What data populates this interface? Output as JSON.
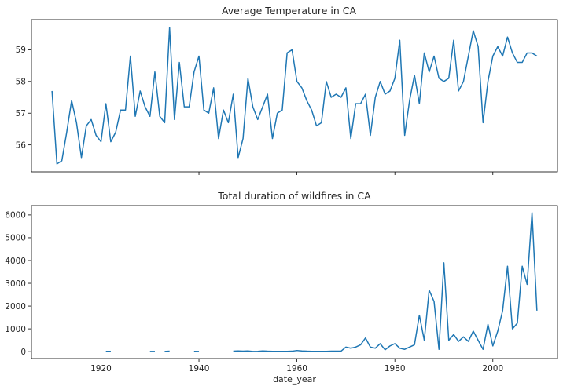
{
  "chart_data": [
    {
      "type": "line",
      "title": "Average Temperature in CA",
      "xlabel": "",
      "ylabel": "",
      "xlim": [
        1905.8,
        2013.2
      ],
      "ylim": [
        55.15,
        59.95
      ],
      "xticks": [
        1920,
        1940,
        1960,
        1980,
        2000
      ],
      "yticks": [
        56,
        57,
        58,
        59
      ],
      "show_xtick_labels": false,
      "color": "#1f77b4",
      "series": [
        {
          "x": [
            1910,
            1911,
            1912,
            1913,
            1914,
            1915,
            1916,
            1917,
            1918,
            1919,
            1920,
            1921,
            1922,
            1923,
            1924,
            1925,
            1926,
            1927,
            1928,
            1929,
            1930,
            1931,
            1932,
            1933,
            1934,
            1935,
            1936,
            1937,
            1938,
            1939,
            1940,
            1941,
            1942,
            1943,
            1944,
            1945,
            1946,
            1947,
            1948,
            1949,
            1950,
            1951,
            1952,
            1953,
            1954,
            1955,
            1956,
            1957,
            1958,
            1959,
            1960,
            1961,
            1962,
            1963,
            1964,
            1965,
            1966,
            1967,
            1968,
            1969,
            1970,
            1971,
            1972,
            1973,
            1974,
            1975,
            1976,
            1977,
            1978,
            1979,
            1980,
            1981,
            1982,
            1983,
            1984,
            1985,
            1986,
            1987,
            1988,
            1989,
            1990,
            1991,
            1992,
            1993,
            1994,
            1995,
            1996,
            1997,
            1998,
            1999,
            2000,
            2001,
            2002,
            2003,
            2004,
            2005,
            2006,
            2007,
            2008,
            2009
          ],
          "y": [
            57.7,
            55.4,
            55.5,
            56.4,
            57.4,
            56.7,
            55.6,
            56.6,
            56.8,
            56.3,
            56.1,
            57.3,
            56.1,
            56.4,
            57.1,
            57.1,
            58.8,
            56.9,
            57.7,
            57.2,
            56.9,
            58.3,
            56.9,
            56.7,
            59.7,
            56.8,
            58.6,
            57.2,
            57.2,
            58.3,
            58.8,
            57.1,
            57.0,
            57.8,
            56.2,
            57.1,
            56.7,
            57.6,
            55.6,
            56.2,
            58.1,
            57.2,
            56.8,
            57.2,
            57.6,
            56.2,
            57.0,
            57.1,
            58.9,
            59.0,
            58.0,
            57.8,
            57.4,
            57.1,
            56.6,
            56.7,
            58.0,
            57.5,
            57.6,
            57.5,
            57.8,
            56.2,
            57.3,
            57.3,
            57.6,
            56.3,
            57.5,
            58.0,
            57.6,
            57.7,
            58.1,
            59.3,
            56.3,
            57.4,
            58.2,
            57.3,
            58.9,
            58.3,
            58.8,
            58.1,
            58.0,
            58.1,
            59.3,
            57.7,
            58.0,
            58.8,
            59.6,
            59.1,
            56.7,
            58.0,
            58.8,
            59.1,
            58.8,
            59.4,
            58.9,
            58.6,
            58.6,
            58.9,
            58.9,
            58.8
          ]
        }
      ]
    },
    {
      "type": "line",
      "title": "Total duration of wildfires in CA",
      "xlabel": "date_year",
      "ylabel": "",
      "xlim": [
        1905.8,
        2013.2
      ],
      "ylim": [
        -305,
        6410
      ],
      "xticks": [
        1920,
        1940,
        1960,
        1980,
        2000
      ],
      "yticks": [
        0,
        1000,
        2000,
        3000,
        4000,
        5000,
        6000
      ],
      "color": "#1f77b4",
      "series": [
        {
          "x": [
            1910,
            1911,
            1912,
            1913,
            1914,
            1915,
            1916,
            1917,
            1918,
            1919,
            1920,
            1921,
            1922,
            1923,
            1924,
            1925,
            1926,
            1927,
            1928,
            1929,
            1930,
            1931,
            1932,
            1933,
            1934,
            1935,
            1936,
            1937,
            1938,
            1939,
            1940,
            1941,
            1942,
            1943,
            1944,
            1945,
            1946,
            1947,
            1948,
            1949,
            1950,
            1951,
            1952,
            1953,
            1954,
            1955,
            1956,
            1957,
            1958,
            1959,
            1960,
            1961,
            1962,
            1963,
            1964,
            1965,
            1966,
            1967,
            1968,
            1969,
            1970,
            1971,
            1972,
            1973,
            1974,
            1975,
            1976,
            1977,
            1978,
            1979,
            1980,
            1981,
            1982,
            1983,
            1984,
            1985,
            1986,
            1987,
            1988,
            1989,
            1990,
            1991,
            1992,
            1993,
            1994,
            1995,
            1996,
            1997,
            1998,
            1999,
            2000,
            2001,
            2002,
            2003,
            2004,
            2005,
            2006,
            2007,
            2008,
            2009
          ],
          "y": [
            null,
            null,
            null,
            null,
            null,
            null,
            null,
            null,
            null,
            null,
            null,
            15,
            15,
            null,
            null,
            null,
            null,
            null,
            null,
            null,
            10,
            10,
            null,
            10,
            20,
            null,
            null,
            null,
            null,
            15,
            10,
            null,
            null,
            null,
            null,
            null,
            null,
            20,
            30,
            20,
            30,
            10,
            15,
            30,
            20,
            15,
            15,
            15,
            15,
            20,
            50,
            30,
            20,
            15,
            15,
            15,
            15,
            20,
            20,
            20,
            200,
            150,
            200,
            300,
            600,
            200,
            150,
            350,
            80,
            250,
            350,
            150,
            100,
            200,
            300,
            1600,
            500,
            2700,
            2200,
            100,
            3900,
            500,
            750,
            450,
            650,
            450,
            900,
            500,
            100,
            1200,
            250,
            900,
            1800,
            3750,
            1000,
            1250,
            3750,
            2950,
            6100,
            1800
          ]
        }
      ]
    }
  ]
}
